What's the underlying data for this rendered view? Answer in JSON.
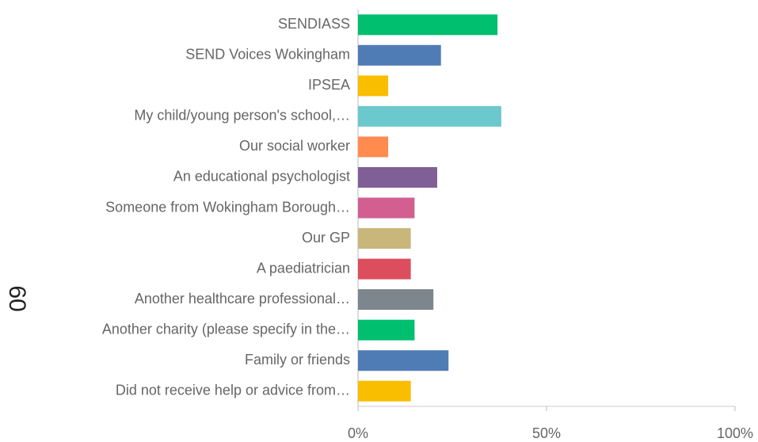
{
  "chart_data": {
    "type": "hbar",
    "side_label": "60",
    "categories": [
      "SENDIASS",
      "SEND Voices Wokingham",
      "IPSEA",
      "My child/young person's school,…",
      "Our social worker",
      "An educational psychologist",
      "Someone from Wokingham Borough…",
      "Our GP",
      "A paediatrician",
      "Another healthcare professional…",
      "Another charity (please specify in the…",
      "Family or friends",
      "Did not receive help or advice from…"
    ],
    "values": [
      37,
      22,
      8,
      38,
      8,
      21,
      15,
      14,
      14,
      20,
      15,
      24,
      14
    ],
    "colors": [
      "#00bf6f",
      "#507cb6",
      "#f9be00",
      "#6bc8cd",
      "#ff8b4f",
      "#7f5f96",
      "#d25f90",
      "#c9b67b",
      "#dc4e5d",
      "#7d868c",
      "#00bf6f",
      "#507cb6",
      "#f9be00"
    ],
    "xlim": [
      0,
      100
    ],
    "xticks": [
      {
        "value": 0,
        "label": "0%"
      },
      {
        "value": 50,
        "label": "50%"
      },
      {
        "value": 100,
        "label": "100%"
      }
    ],
    "grid": false
  }
}
